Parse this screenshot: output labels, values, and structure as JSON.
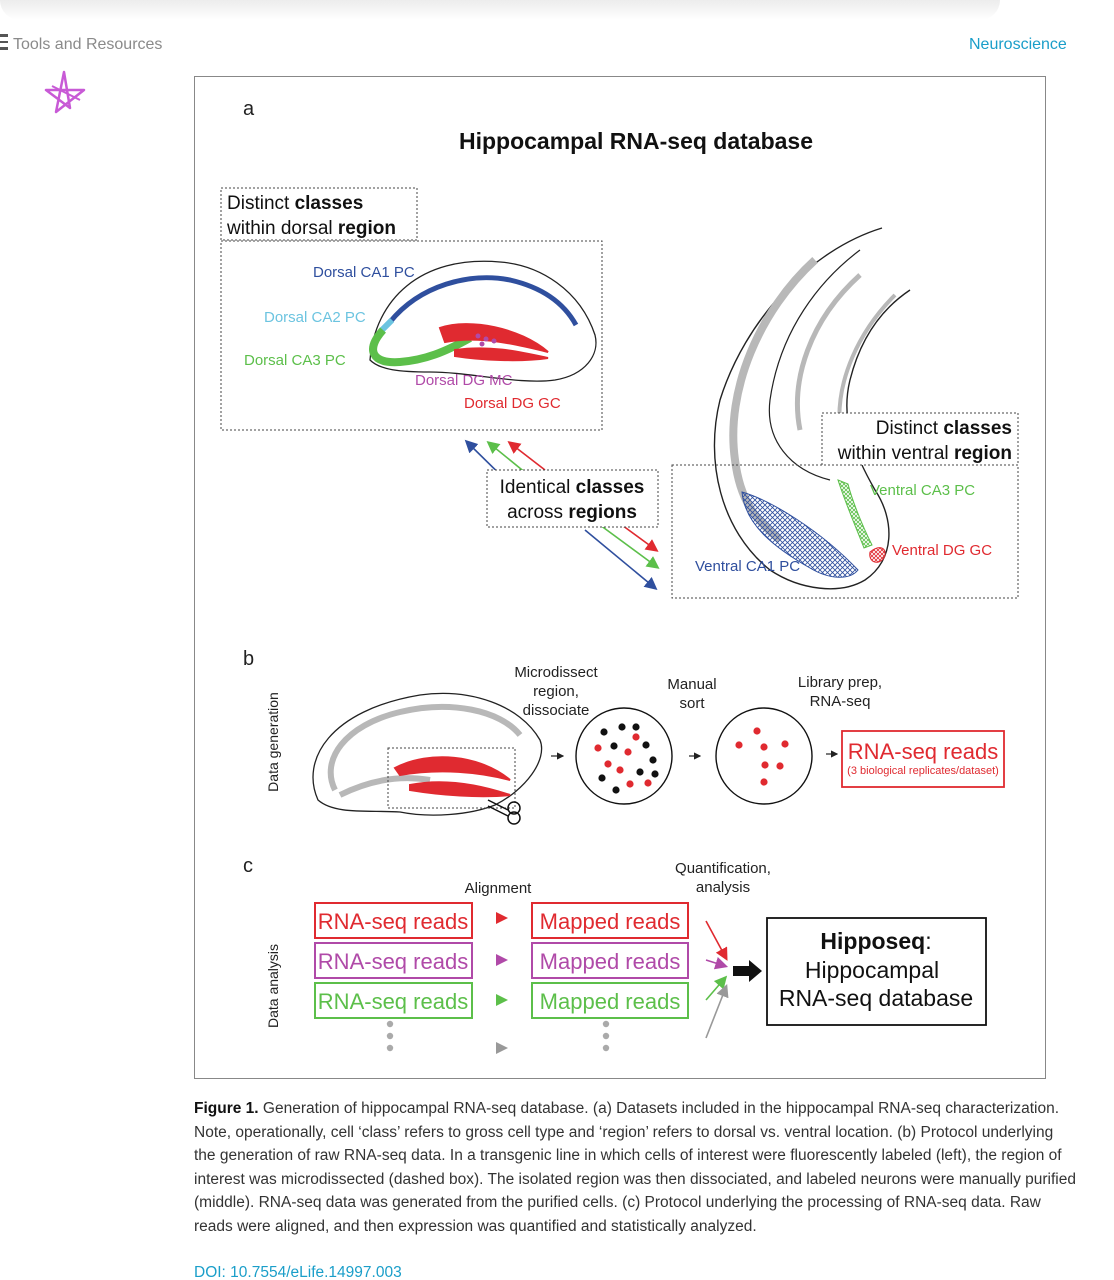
{
  "header": {
    "section": "Tools and Resources",
    "subject": "Neuroscience"
  },
  "figure": {
    "panel_a_label": "a",
    "panel_b_label": "b",
    "panel_c_label": "c",
    "title": "Hippocampal RNA-seq database",
    "dorsal_box": {
      "line1_plain": "Distinct ",
      "line1_bold": "classes",
      "line2_plain": "within dorsal ",
      "line2_bold": "region"
    },
    "ventral_box": {
      "line1_plain": "Distinct ",
      "line1_bold": "classes",
      "line2_plain": "within ventral ",
      "line2_bold": "region"
    },
    "identical_box": {
      "line1_plain": "Identical ",
      "line1_bold": "classes",
      "line2_plain": "across ",
      "line2_bold": "regions"
    },
    "dorsal_labels": {
      "ca1": "Dorsal CA1 PC",
      "ca2": "Dorsal CA2 PC",
      "ca3": "Dorsal CA3 PC",
      "mc": "Dorsal DG MC",
      "gc": "Dorsal DG GC"
    },
    "ventral_labels": {
      "ca3": "Ventral CA3 PC",
      "gc": "Ventral DG GC",
      "ca1": "Ventral CA1 PC"
    },
    "side_labels": {
      "generation": "Data generation",
      "analysis": "Data analysis"
    },
    "steps": {
      "microdissect_1": "Microdissect",
      "microdissect_2": "region,",
      "microdissect_3": "dissociate",
      "sort_1": "Manual",
      "sort_2": "sort",
      "library_1": "Library prep,",
      "library_2": "RNA-seq",
      "reads_title": "RNA-seq reads",
      "reads_sub": "(3 biological replicates/dataset)"
    },
    "analysis": {
      "alignment": "Alignment",
      "quant_1": "Quantification,",
      "quant_2": "analysis",
      "reads": [
        "RNA-seq reads",
        "RNA-seq reads",
        "RNA-seq reads"
      ],
      "mapped": [
        "Mapped reads",
        "Mapped reads",
        "Mapped reads"
      ],
      "db_title_bold": "Hipposeq",
      "db_title_colon": ":",
      "db_line2": "Hippocampal",
      "db_line3": "RNA-seq database"
    },
    "colors": {
      "ca1": "#2f4f9e",
      "ca2": "#6cc4e0",
      "ca3": "#5cbf4a",
      "mc": "#b04aa8",
      "gc": "#e02a30",
      "gray": "#b8b8b8"
    }
  },
  "caption": {
    "label": "Figure 1.",
    "text": " Generation of hippocampal RNA-seq database. (a) Datasets included in the hippocampal RNA-seq characterization. Note, operationally, cell ‘class’ refers to gross cell type and ‘region’ refers to dorsal vs. ventral location. (b) Protocol underlying the generation of raw RNA-seq data. In a transgenic line in which cells of interest were fluorescently labeled (left), the region of interest was microdissected (dashed box). The isolated region was then dissociated, and labeled neurons were manually purified (middle). RNA-seq data was generated from the purified cells. (c) Protocol underlying the processing of RNA-seq data. Raw reads were aligned, and then expression was quantified and statistically analyzed."
  },
  "doi": "DOI: 10.7554/eLife.14997.003"
}
